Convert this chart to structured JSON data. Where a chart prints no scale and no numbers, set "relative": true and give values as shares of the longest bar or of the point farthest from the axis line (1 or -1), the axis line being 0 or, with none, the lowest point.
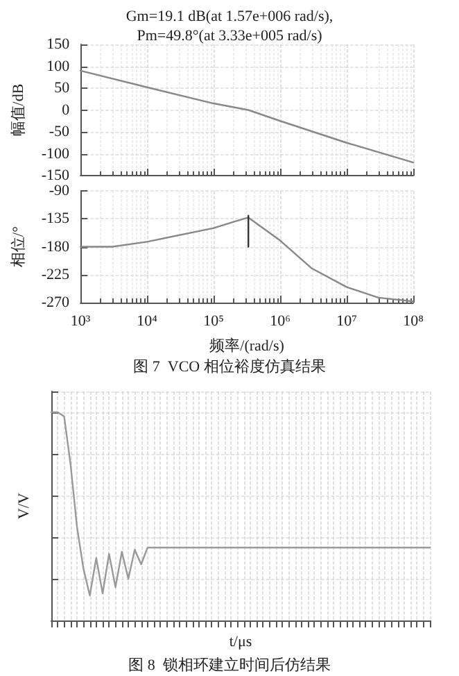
{
  "chart_data": [
    {
      "type": "line",
      "title": "Gm=19.1 dB(at 1.57e+006 rad/s),\nPm=49.8°(at 3.33e+005 rad/s)",
      "ylabel": "幅值/dB",
      "log": "x",
      "x": [
        1000,
        10000,
        100000,
        333000,
        1000000,
        10000000,
        100000000
      ],
      "series": [
        {
          "color": "#888888",
          "values": [
            90,
            52,
            15,
            0,
            -25,
            -75,
            -120
          ]
        }
      ],
      "xlim": [
        1000,
        100000000
      ],
      "ylim": [
        -150,
        150
      ],
      "yticks": [
        -150,
        -100,
        -50,
        0,
        50,
        100,
        150
      ],
      "grid": true,
      "marker": "none",
      "tick_labels": "y"
    },
    {
      "type": "line",
      "xlabel": "频率/(rad/s)",
      "ylabel": "相位/°",
      "log": "x",
      "x": [
        1000,
        3000,
        10000,
        100000,
        200000,
        333000,
        1000000,
        3000000,
        10000000,
        30000000,
        100000000
      ],
      "series": [
        {
          "color": "#888888",
          "values": [
            -180,
            -180,
            -172,
            -150,
            -140,
            -133,
            -170,
            -215,
            -245,
            -262,
            -268
          ]
        },
        {
          "color": "#333333",
          "x": [
            333000,
            333000
          ],
          "values": [
            -180,
            -130
          ]
        }
      ],
      "xlim": [
        1000,
        100000000
      ],
      "xticks": [
        {
          "value": 1000,
          "label": "10³"
        },
        {
          "value": 10000,
          "label": "10⁴"
        },
        {
          "value": 100000,
          "label": "10⁵"
        },
        {
          "value": 1000000,
          "label": "10⁶"
        },
        {
          "value": 10000000,
          "label": "10⁷"
        },
        {
          "value": 100000000,
          "label": "10⁸"
        }
      ],
      "ylim": [
        -270,
        -90
      ],
      "yticks": [
        -270,
        -225,
        -180,
        -135,
        -90
      ],
      "grid": true,
      "marker": "none",
      "annotations": [
        "图 7  VCO 相位裕度仿真结果"
      ]
    },
    {
      "type": "line",
      "xlabel": "t/μs",
      "ylabel": "V/V",
      "relative": true,
      "categories": [
        null,
        null,
        null,
        null,
        null,
        null,
        null,
        null,
        null,
        null,
        null,
        null,
        null,
        null,
        null,
        null,
        null,
        null,
        null,
        null,
        null,
        null,
        null,
        null,
        null,
        null,
        null,
        null,
        null,
        null,
        null,
        null,
        null,
        null,
        null,
        null,
        null,
        null,
        null,
        null,
        null,
        null,
        null,
        null,
        null,
        null,
        null,
        null,
        null,
        null,
        null,
        null,
        null,
        null,
        null,
        null,
        null,
        null,
        null,
        null
      ],
      "series": [
        {
          "color": "#999999",
          "values": [
            1,
            1,
            0.98,
            0.75,
            0.45,
            0.25,
            0.12,
            0.3,
            0.13,
            0.32,
            0.16,
            0.33,
            0.2,
            0.34,
            0.27,
            0.35,
            0.35,
            0.35,
            0.35,
            0.35,
            0.35,
            0.35,
            0.35,
            0.35,
            0.35,
            0.35,
            0.35,
            0.35,
            0.35,
            0.35,
            0.35,
            0.35,
            0.35,
            0.35,
            0.35,
            0.35,
            0.35,
            0.35,
            0.35,
            0.35,
            0.35,
            0.35,
            0.35,
            0.35,
            0.35,
            0.35,
            0.35,
            0.35,
            0.35,
            0.35,
            0.35,
            0.35,
            0.35,
            0.35,
            0.35,
            0.35,
            0.35,
            0.35,
            0.35,
            0.35
          ]
        }
      ],
      "grid": true,
      "marker": "none",
      "tick_labels": false,
      "annotations": [
        "图 8  锁相环建立时间后仿结果"
      ]
    }
  ]
}
